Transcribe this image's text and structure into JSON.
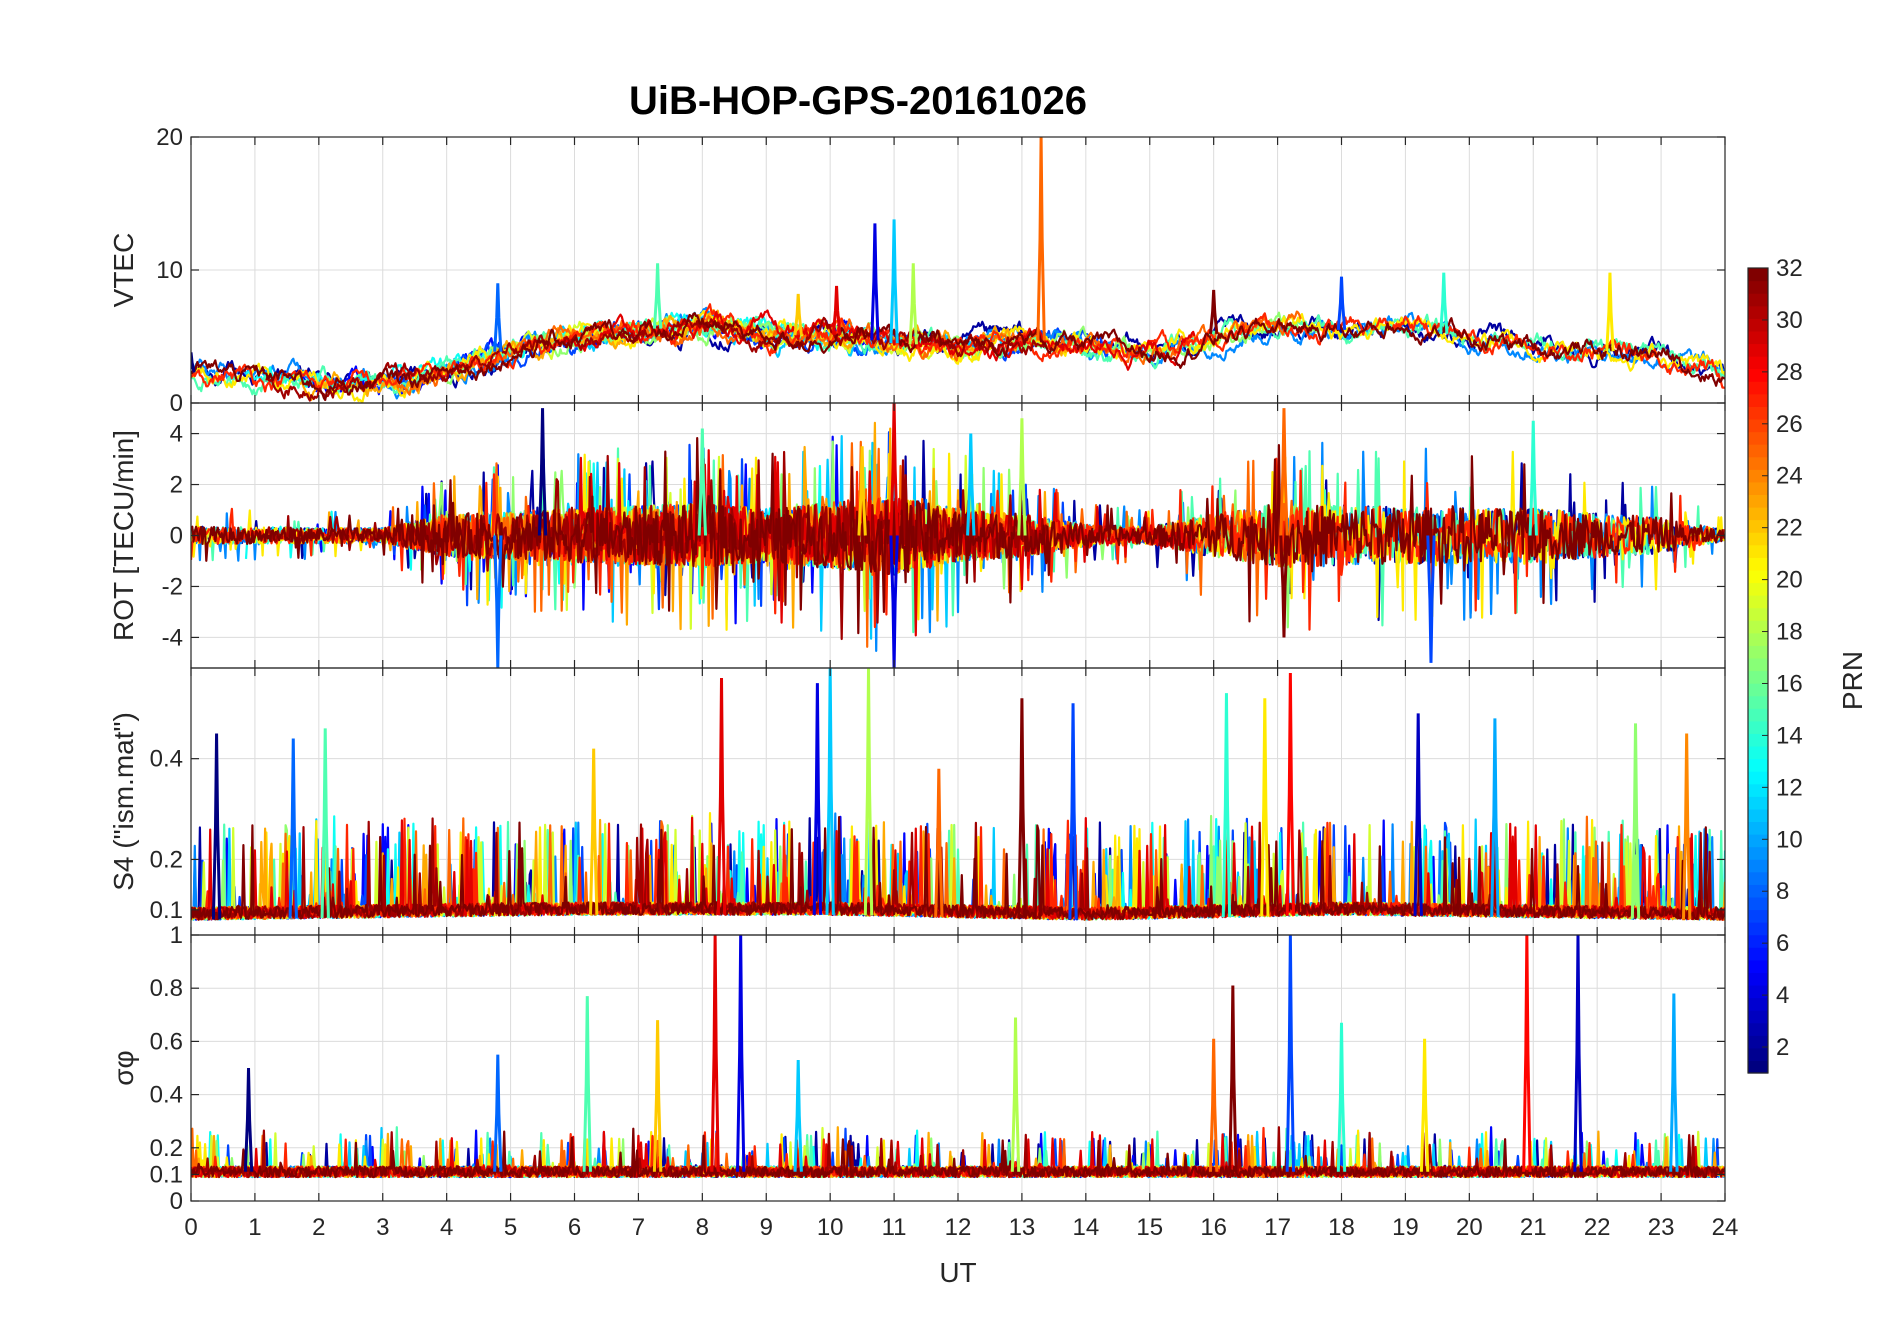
{
  "chart_data": {
    "type": "line",
    "title": "UiB-HOP-GPS-20161026",
    "xlabel": "UT",
    "xlim": [
      0,
      24
    ],
    "x_ticks": [
      0,
      1,
      2,
      3,
      4,
      5,
      6,
      7,
      8,
      9,
      10,
      11,
      12,
      13,
      14,
      15,
      16,
      17,
      18,
      19,
      20,
      21,
      22,
      23,
      24
    ],
    "grid": true,
    "colorbar": {
      "label": "PRN",
      "colormap": "jet",
      "range": [
        1,
        32
      ],
      "ticks": [
        2,
        4,
        6,
        8,
        10,
        12,
        14,
        16,
        18,
        20,
        22,
        24,
        26,
        28,
        30,
        32
      ],
      "placement": "right"
    },
    "panels": [
      {
        "id": "vtec",
        "ylabel": "VTEC",
        "ylim": [
          0,
          20
        ],
        "y_ticks": [
          0,
          10,
          20
        ],
        "y_tick_labels": [
          "0",
          "10",
          "20"
        ],
        "baseline_profile": [
          [
            0,
            2.3
          ],
          [
            2,
            1.5
          ],
          [
            3,
            1.5
          ],
          [
            4,
            2.5
          ],
          [
            5,
            4.2
          ],
          [
            6,
            5.0
          ],
          [
            7,
            5.5
          ],
          [
            8,
            5.8
          ],
          [
            9,
            5.0
          ],
          [
            10,
            5.2
          ],
          [
            11,
            4.5
          ],
          [
            12,
            4.2
          ],
          [
            13,
            5.0
          ],
          [
            14,
            4.0
          ],
          [
            15,
            4.0
          ],
          [
            16,
            5.2
          ],
          [
            17,
            5.8
          ],
          [
            18,
            5.5
          ],
          [
            19,
            5.8
          ],
          [
            20,
            4.8
          ],
          [
            21,
            4.2
          ],
          [
            22,
            4.0
          ],
          [
            23,
            3.5
          ],
          [
            24,
            1.8
          ]
        ],
        "peaks": [
          [
            0.0,
            3.8
          ],
          [
            4.8,
            9.0
          ],
          [
            7.3,
            10.5
          ],
          [
            9.5,
            8.2
          ],
          [
            10.1,
            8.8
          ],
          [
            10.7,
            13.5
          ],
          [
            11.0,
            13.8
          ],
          [
            11.3,
            10.5
          ],
          [
            13.3,
            20.0
          ],
          [
            16.0,
            8.5
          ],
          [
            18.0,
            9.5
          ],
          [
            19.6,
            9.8
          ],
          [
            22.2,
            9.8
          ]
        ]
      },
      {
        "id": "rot",
        "ylabel": "ROT [TECU/min]",
        "ylim": [
          -5.2,
          5.2
        ],
        "y_ticks": [
          -4,
          -2,
          0,
          2,
          4
        ],
        "y_tick_labels": [
          "-4",
          "-2",
          "0",
          "2",
          "4"
        ],
        "activity_profile": [
          [
            0,
            0.5
          ],
          [
            3,
            0.4
          ],
          [
            4,
            1.2
          ],
          [
            6,
            1.5
          ],
          [
            8,
            1.8
          ],
          [
            9,
            1.5
          ],
          [
            11,
            2.2
          ],
          [
            12,
            1.5
          ],
          [
            13,
            1.2
          ],
          [
            14,
            0.6
          ],
          [
            15,
            0.5
          ],
          [
            16,
            1.2
          ],
          [
            17,
            1.8
          ],
          [
            19,
            1.6
          ],
          [
            21,
            1.5
          ],
          [
            23,
            1.0
          ],
          [
            24,
            0.3
          ]
        ],
        "peaks": [
          [
            5.5,
            5.0
          ],
          [
            4.8,
            -5.2
          ],
          [
            8.0,
            4.2
          ],
          [
            10.5,
            3.5
          ],
          [
            11.0,
            5.2
          ],
          [
            11.0,
            -5.2
          ],
          [
            12.2,
            4.0
          ],
          [
            13.0,
            4.6
          ],
          [
            17.1,
            5.0
          ],
          [
            17.1,
            -4.0
          ],
          [
            19.4,
            -5.0
          ],
          [
            21.0,
            4.5
          ]
        ]
      },
      {
        "id": "s4",
        "ylabel": "S4 (\"ism.mat\")",
        "ylim": [
          0.05,
          0.58
        ],
        "y_ticks": [
          0.1,
          0.2,
          0.4
        ],
        "y_tick_labels": [
          "0.1",
          "0.2",
          "0.4"
        ],
        "baseline_profile": [
          [
            0,
            0.08
          ],
          [
            6,
            0.09
          ],
          [
            10,
            0.09
          ],
          [
            14,
            0.08
          ],
          [
            18,
            0.09
          ],
          [
            24,
            0.08
          ]
        ],
        "peaks": [
          [
            0.4,
            0.45
          ],
          [
            1.6,
            0.44
          ],
          [
            2.1,
            0.46
          ],
          [
            6.3,
            0.42
          ],
          [
            8.3,
            0.56
          ],
          [
            9.8,
            0.55
          ],
          [
            10.0,
            0.58
          ],
          [
            10.6,
            0.58
          ],
          [
            11.7,
            0.38
          ],
          [
            13.0,
            0.52
          ],
          [
            13.8,
            0.51
          ],
          [
            16.2,
            0.53
          ],
          [
            16.8,
            0.52
          ],
          [
            17.2,
            0.57
          ],
          [
            19.2,
            0.49
          ],
          [
            20.4,
            0.48
          ],
          [
            22.6,
            0.47
          ],
          [
            23.4,
            0.45
          ]
        ]
      },
      {
        "id": "sigma_phi",
        "ylabel": "σφ",
        "ylim": [
          0,
          1
        ],
        "y_ticks": [
          0,
          0.1,
          0.2,
          0.4,
          0.6,
          0.8,
          1
        ],
        "y_tick_labels": [
          "0",
          "0.1",
          "0.2",
          "0.4",
          "0.6",
          "0.8",
          "1"
        ],
        "baseline_profile": [
          [
            0,
            0.11
          ],
          [
            24,
            0.11
          ]
        ],
        "peaks": [
          [
            0.9,
            0.5
          ],
          [
            4.8,
            0.55
          ],
          [
            6.2,
            0.77
          ],
          [
            7.3,
            0.68
          ],
          [
            8.2,
            1.0
          ],
          [
            8.6,
            1.0
          ],
          [
            9.5,
            0.53
          ],
          [
            12.9,
            0.69
          ],
          [
            16.0,
            0.61
          ],
          [
            16.3,
            0.81
          ],
          [
            17.2,
            1.0
          ],
          [
            18.0,
            0.67
          ],
          [
            19.3,
            0.61
          ],
          [
            20.9,
            1.0
          ],
          [
            21.7,
            1.0
          ],
          [
            23.2,
            0.78
          ]
        ]
      }
    ]
  }
}
